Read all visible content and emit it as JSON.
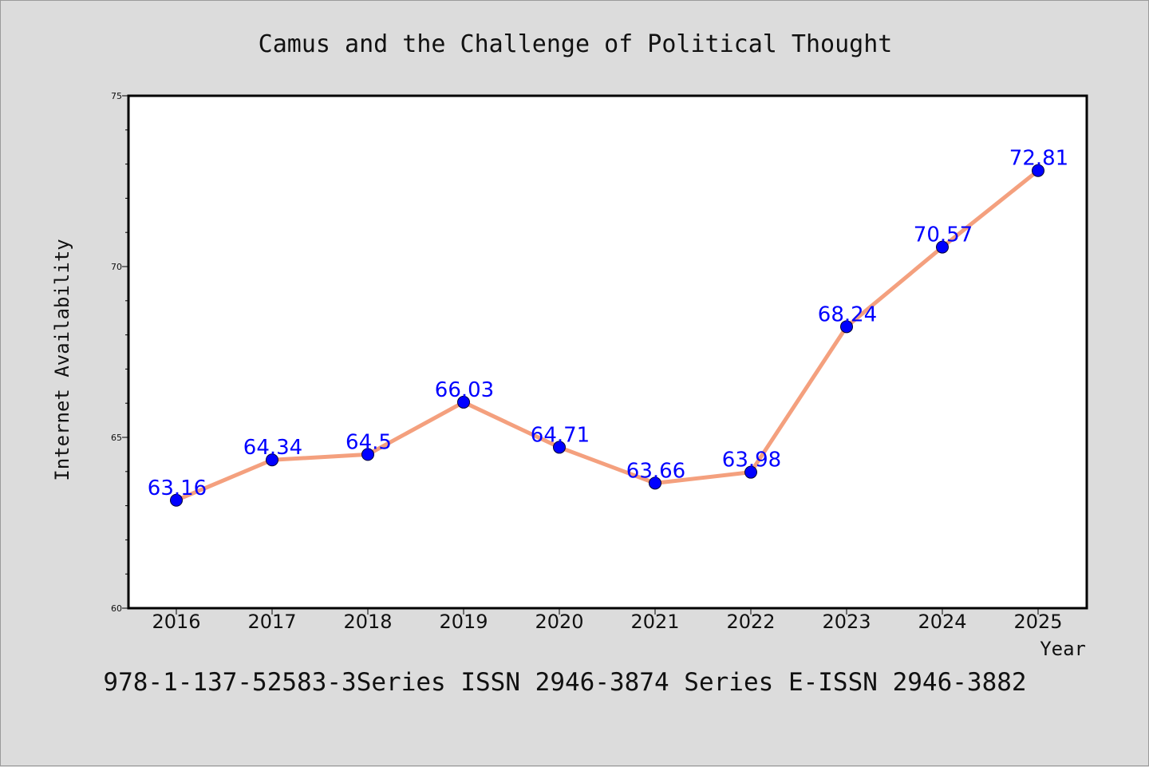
{
  "chart_data": {
    "type": "line",
    "title": "Camus and the Challenge of Political Thought",
    "xlabel": "Year",
    "ylabel": "Internet Availability",
    "categories": [
      "2016",
      "2017",
      "2018",
      "2019",
      "2020",
      "2021",
      "2022",
      "2023",
      "2024",
      "2025"
    ],
    "values": [
      63.16,
      64.34,
      64.5,
      66.03,
      64.71,
      63.66,
      63.98,
      68.24,
      70.57,
      72.81
    ],
    "data_labels": [
      "63.16",
      "64.34",
      "64.5",
      "66.03",
      "64.71",
      "63.66",
      "63.98",
      "68.24",
      "70.57",
      "72.81"
    ],
    "ylim": [
      60,
      75
    ],
    "yticks": [
      60,
      65,
      70,
      75
    ],
    "grid": false,
    "legend": "none",
    "line_color": "#f4a07e",
    "marker_color": "#0000ff",
    "label_color": "#0000ff",
    "background_color": "#dcdcdc",
    "plot_background": "#ffffff"
  },
  "footer": {
    "text": "978-1-137-52583-3Series ISSN 2946-3874 Series E-ISSN 2946-3882"
  }
}
